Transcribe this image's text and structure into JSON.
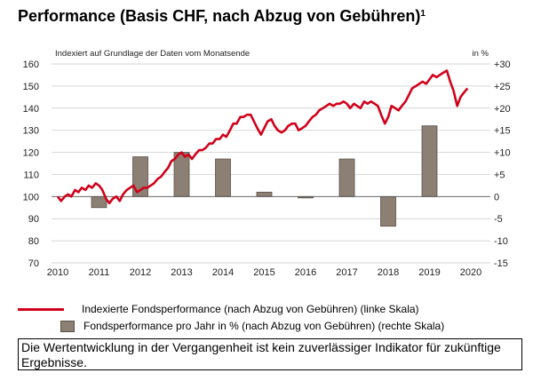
{
  "title": "Performance (Basis CHF, nach Abzug von Gebühren)",
  "title_sup": "1",
  "left_axis_caption": "Indexiert auf Grundlage der Daten vom Monatsende",
  "right_axis_caption": "in %",
  "legend": {
    "line_label": "Indexierte Fondsperformance (nach Abzug von Gebühren) (linke Skala)",
    "bar_label": "Fondsperformance pro Jahr in % (nach Abzug von Gebühren) (rechte Skala)"
  },
  "disclaimer": "Die Wertentwicklung in der Vergangenheit ist kein zuverlässiger Indikator für zukünftige Ergebnisse.",
  "chart_data": {
    "type": "bar+line",
    "x_ticks": [
      "2010",
      "2011",
      "2012",
      "2013",
      "2014",
      "2015",
      "2016",
      "2017",
      "2018",
      "2019",
      "2020"
    ],
    "left_axis": {
      "ticks": [
        "160",
        "150",
        "140",
        "130",
        "120",
        "110",
        "100",
        "90",
        "80",
        "70"
      ],
      "ylim": [
        70,
        160
      ]
    },
    "right_axis": {
      "ticks": [
        "+30",
        "+25",
        "+20",
        "+15",
        "+10",
        "+5",
        "0",
        "-5",
        "-10",
        "-15"
      ],
      "ylim": [
        -15,
        30
      ]
    },
    "bars": {
      "name": "Fondsperformance pro Jahr in %",
      "categories": [
        "2011",
        "2012",
        "2013",
        "2014",
        "2015",
        "2016",
        "2017",
        "2018",
        "2019"
      ],
      "values": [
        -2.5,
        9.0,
        10.0,
        8.5,
        1.0,
        -0.3,
        8.5,
        -6.7,
        16.0
      ]
    },
    "line": {
      "name": "Indexierte Fondsperformance",
      "x": [
        2010.0,
        2010.08,
        2010.17,
        2010.25,
        2010.33,
        2010.42,
        2010.5,
        2010.58,
        2010.67,
        2010.75,
        2010.83,
        2010.92,
        2011.0,
        2011.08,
        2011.17,
        2011.25,
        2011.33,
        2011.42,
        2011.5,
        2011.58,
        2011.67,
        2011.75,
        2011.83,
        2011.92,
        2012.0,
        2012.08,
        2012.17,
        2012.25,
        2012.33,
        2012.42,
        2012.5,
        2012.58,
        2012.67,
        2012.75,
        2012.83,
        2012.92,
        2013.0,
        2013.08,
        2013.17,
        2013.25,
        2013.33,
        2013.42,
        2013.5,
        2013.58,
        2013.67,
        2013.75,
        2013.83,
        2013.92,
        2014.0,
        2014.08,
        2014.17,
        2014.25,
        2014.33,
        2014.42,
        2014.5,
        2014.58,
        2014.67,
        2014.75,
        2014.83,
        2014.92,
        2015.0,
        2015.08,
        2015.17,
        2015.25,
        2015.33,
        2015.42,
        2015.5,
        2015.58,
        2015.67,
        2015.75,
        2015.83,
        2015.92,
        2016.0,
        2016.08,
        2016.17,
        2016.25,
        2016.33,
        2016.42,
        2016.5,
        2016.58,
        2016.67,
        2016.75,
        2016.83,
        2016.92,
        2017.0,
        2017.08,
        2017.17,
        2017.25,
        2017.33,
        2017.42,
        2017.5,
        2017.58,
        2017.67,
        2017.75,
        2017.83,
        2017.92,
        2018.0,
        2018.08,
        2018.17,
        2018.25,
        2018.33,
        2018.42,
        2018.5,
        2018.58,
        2018.67,
        2018.75,
        2018.83,
        2018.92,
        2019.0,
        2019.08,
        2019.17,
        2019.25,
        2019.33,
        2019.42,
        2019.5,
        2019.58,
        2019.67,
        2019.75,
        2019.83,
        2019.92
      ],
      "values": [
        100,
        98,
        100,
        101,
        100,
        103,
        102,
        104,
        103,
        105,
        104,
        106,
        105,
        103,
        99,
        97,
        99,
        100,
        98,
        101,
        103,
        104,
        105,
        102,
        103,
        104,
        104,
        105,
        106,
        108,
        109,
        111,
        113,
        116,
        117,
        119,
        120,
        118,
        119,
        117,
        119,
        121,
        121,
        122,
        124,
        124,
        126,
        126,
        128,
        127,
        130,
        133,
        133,
        136,
        136,
        137,
        137,
        134,
        131,
        128,
        131,
        134,
        135,
        132,
        130,
        129,
        130,
        132,
        133,
        133,
        130,
        131,
        132,
        134,
        136,
        137,
        139,
        140,
        141,
        142,
        141,
        142,
        142,
        143,
        142,
        140,
        142,
        141,
        140,
        143,
        142,
        143,
        142,
        141,
        137,
        133,
        136,
        141,
        140,
        139,
        141,
        143,
        146,
        149,
        150,
        151,
        152,
        151,
        153,
        155,
        154,
        155,
        156,
        157,
        152,
        148,
        141,
        145,
        147,
        149
      ]
    }
  }
}
